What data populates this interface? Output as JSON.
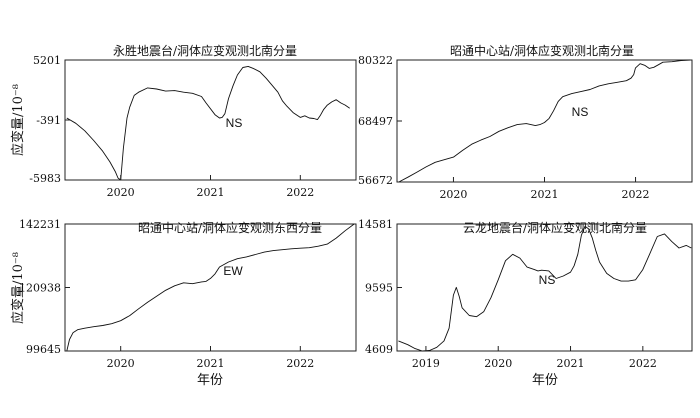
{
  "chart_data": [
    {
      "type": "line",
      "title": "永胜地震台/洞体应变观测北南分量",
      "annotation": "NS",
      "ylabel": "应变量/10⁻⁸",
      "xlabel": "",
      "yticks": [
        -5983,
        -391,
        5201
      ],
      "ylim": [
        -5983,
        5201
      ],
      "xticks": [
        "2020",
        "2021",
        "2022"
      ],
      "xlim": [
        2019.38,
        2022.62
      ],
      "series": [
        {
          "x": [
            2019.4,
            2019.5,
            2019.6,
            2019.7,
            2019.8,
            2019.88,
            2019.94,
            2019.97,
            2020.0,
            2020.03,
            2020.07,
            2020.1,
            2020.15,
            2020.2,
            2020.3,
            2020.4,
            2020.5,
            2020.6,
            2020.7,
            2020.8,
            2020.9,
            2020.95,
            2021.05,
            2021.1,
            2021.13,
            2021.16,
            2021.2,
            2021.25,
            2021.3,
            2021.36,
            2021.42,
            2021.48,
            2021.55,
            2021.62,
            2021.68,
            2021.75,
            2021.8,
            2021.85,
            2021.92,
            2022.0,
            2022.05,
            2022.1,
            2022.15,
            2022.19,
            2022.22,
            2022.26,
            2022.3,
            2022.35,
            2022.4,
            2022.45,
            2022.5,
            2022.55
          ],
          "y": [
            -200,
            -700,
            -1400,
            -2300,
            -3300,
            -4300,
            -5200,
            -5800,
            -5983,
            -3000,
            -200,
            800,
            1900,
            2200,
            2600,
            2500,
            2300,
            2350,
            2200,
            2100,
            1800,
            1200,
            100,
            -200,
            -150,
            200,
            1600,
            2800,
            3800,
            4500,
            4600,
            4400,
            4100,
            3500,
            2900,
            2200,
            1400,
            900,
            300,
            -150,
            0,
            -200,
            -250,
            -350,
            0,
            600,
            1000,
            1300,
            1500,
            1200,
            1000,
            700
          ]
        }
      ]
    },
    {
      "type": "line",
      "title": "昭通中心站/洞体应变观测北南分量",
      "annotation": "NS",
      "ylabel": "",
      "xlabel": "",
      "yticks": [
        56672,
        68497,
        80322
      ],
      "ylim": [
        56672,
        80322
      ],
      "xticks": [
        "2020",
        "2021",
        "2022"
      ],
      "xlim": [
        2019.38,
        2022.62
      ],
      "series": [
        {
          "x": [
            2019.4,
            2019.5,
            2019.6,
            2019.7,
            2019.8,
            2019.9,
            2020.0,
            2020.1,
            2020.2,
            2020.3,
            2020.4,
            2020.5,
            2020.6,
            2020.7,
            2020.8,
            2020.9,
            2020.95,
            2021.0,
            2021.05,
            2021.1,
            2021.15,
            2021.2,
            2021.3,
            2021.4,
            2021.5,
            2021.6,
            2021.7,
            2021.8,
            2021.9,
            2021.95,
            2021.98,
            2022.0,
            2022.05,
            2022.1,
            2022.15,
            2022.2,
            2022.25,
            2022.3,
            2022.4,
            2022.5,
            2022.6
          ],
          "y": [
            56672,
            57600,
            58600,
            59600,
            60500,
            61000,
            61500,
            62800,
            64000,
            64800,
            65500,
            66500,
            67200,
            67800,
            68000,
            67600,
            67800,
            68200,
            69000,
            70500,
            72300,
            73200,
            73800,
            74200,
            74600,
            75300,
            75700,
            76000,
            76300,
            76800,
            77500,
            78800,
            79600,
            79300,
            78700,
            78900,
            79400,
            79900,
            80000,
            80200,
            80322
          ]
        }
      ]
    },
    {
      "type": "line",
      "title": "昭通中心站/洞体应变观测东西分量",
      "annotation": "EW",
      "ylabel": "应变量/10⁻⁸",
      "xlabel": "年份",
      "yticks": [
        99645,
        120938,
        142231
      ],
      "ylim": [
        99645,
        142231
      ],
      "xticks": [
        "2020",
        "2021",
        "2022"
      ],
      "xlim": [
        2019.38,
        2022.62
      ],
      "series": [
        {
          "x": [
            2019.4,
            2019.43,
            2019.47,
            2019.52,
            2019.6,
            2019.7,
            2019.8,
            2019.9,
            2020.0,
            2020.1,
            2020.2,
            2020.3,
            2020.4,
            2020.5,
            2020.6,
            2020.7,
            2020.8,
            2020.9,
            2020.95,
            2021.0,
            2021.05,
            2021.1,
            2021.2,
            2021.3,
            2021.4,
            2021.5,
            2021.6,
            2021.7,
            2021.8,
            2021.9,
            2022.0,
            2022.1,
            2022.2,
            2022.3,
            2022.4,
            2022.5,
            2022.6
          ],
          "y": [
            99645,
            103500,
            105800,
            106800,
            107300,
            107800,
            108200,
            108800,
            109800,
            111500,
            113800,
            116000,
            118000,
            120000,
            121500,
            122500,
            122200,
            122800,
            123000,
            124000,
            125500,
            127800,
            129500,
            130600,
            131200,
            132000,
            132800,
            133300,
            133600,
            133900,
            134100,
            134300,
            134800,
            135500,
            137500,
            140000,
            142231
          ]
        }
      ]
    },
    {
      "type": "line",
      "title": "云龙地震台/洞体应变观测北南分量",
      "annotation": "NS",
      "ylabel": "",
      "xlabel": "年份",
      "yticks": [
        4609,
        9595,
        14581
      ],
      "ylim": [
        4609,
        14581
      ],
      "xticks": [
        "2019",
        "2020",
        "2021",
        "2022"
      ],
      "xlim": [
        2018.6,
        2022.68
      ],
      "series": [
        {
          "x": [
            2018.62,
            2018.75,
            2018.85,
            2018.95,
            2019.05,
            2019.15,
            2019.25,
            2019.32,
            2019.38,
            2019.42,
            2019.46,
            2019.5,
            2019.6,
            2019.7,
            2019.8,
            2019.9,
            2020.0,
            2020.1,
            2020.2,
            2020.3,
            2020.4,
            2020.5,
            2020.55,
            2020.6,
            2020.7,
            2020.8,
            2020.9,
            2021.0,
            2021.05,
            2021.1,
            2021.15,
            2021.2,
            2021.25,
            2021.3,
            2021.35,
            2021.4,
            2021.5,
            2021.6,
            2021.7,
            2021.8,
            2021.9,
            2022.0,
            2022.1,
            2022.2,
            2022.3,
            2022.4,
            2022.5,
            2022.6,
            2022.67
          ],
          "y": [
            5400,
            5100,
            4800,
            4609,
            4650,
            4900,
            5400,
            6400,
            9000,
            9600,
            8900,
            8000,
            7400,
            7300,
            7700,
            8800,
            10200,
            11700,
            12200,
            11900,
            11200,
            11000,
            10900,
            10950,
            10900,
            10300,
            10500,
            10800,
            11300,
            12200,
            13700,
            14400,
            14200,
            13500,
            12500,
            11600,
            10700,
            10300,
            10100,
            10100,
            10200,
            11000,
            12300,
            13600,
            13800,
            13200,
            12700,
            12900,
            12700
          ]
        }
      ]
    }
  ]
}
